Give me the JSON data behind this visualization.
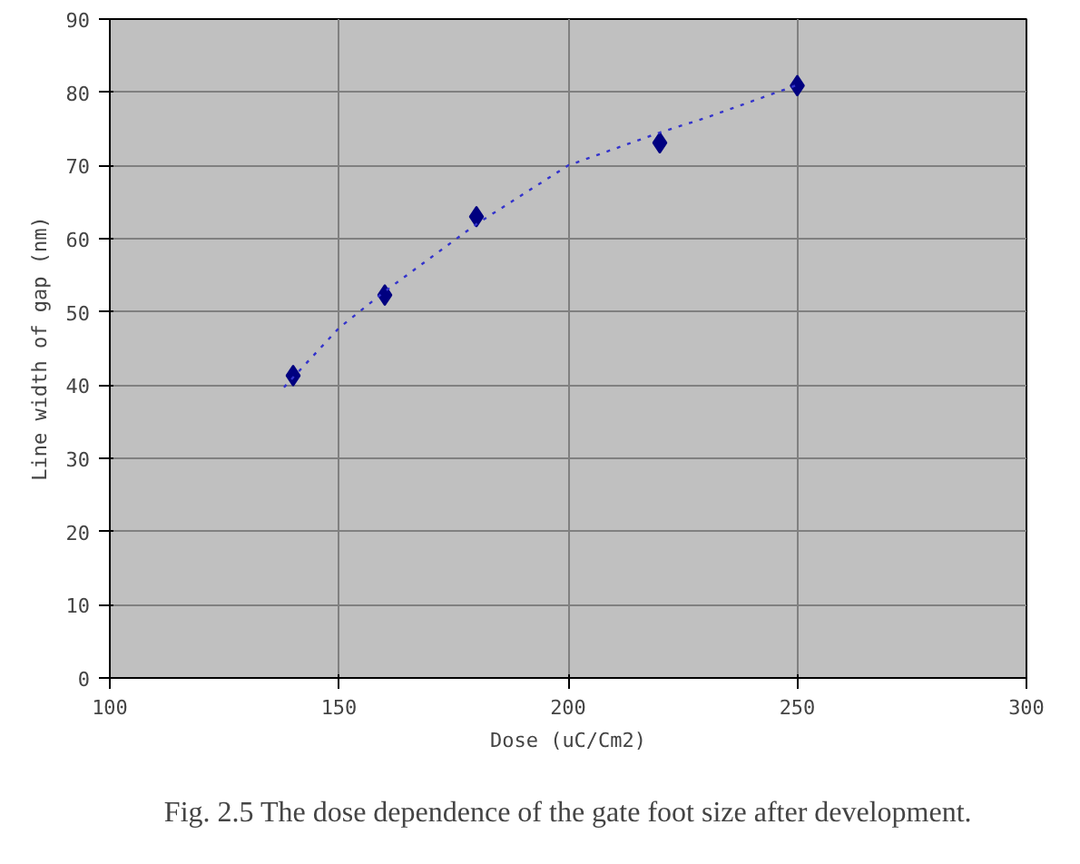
{
  "chart_data": {
    "type": "scatter",
    "title": "Fig. 2.5 The dose dependence of the gate foot size after development.",
    "xlabel": "Dose (uC/Cm2)",
    "ylabel": "Line width of gap (nm)",
    "x": [
      140,
      160,
      180,
      220,
      250
    ],
    "series": [
      {
        "color": "#000080",
        "marker": "diamond",
        "values": [
          41.3,
          52.3,
          63,
          73.1,
          80.9
        ]
      },
      {
        "type": "line",
        "color": "#3333cc",
        "line_style": "dotted",
        "x": [
          138,
          150,
          160,
          180,
          200,
          220,
          230,
          250
        ],
        "values": [
          39.7,
          47.8,
          52.8,
          62,
          70,
          74.5,
          76.5,
          81
        ]
      }
    ],
    "xlim": [
      100,
      300
    ],
    "xticks": [
      100,
      150,
      200,
      250,
      300
    ],
    "ylim": [
      0,
      90
    ],
    "yticks": [
      0,
      10,
      20,
      30,
      40,
      50,
      60,
      70,
      80,
      90
    ],
    "grid": true
  }
}
